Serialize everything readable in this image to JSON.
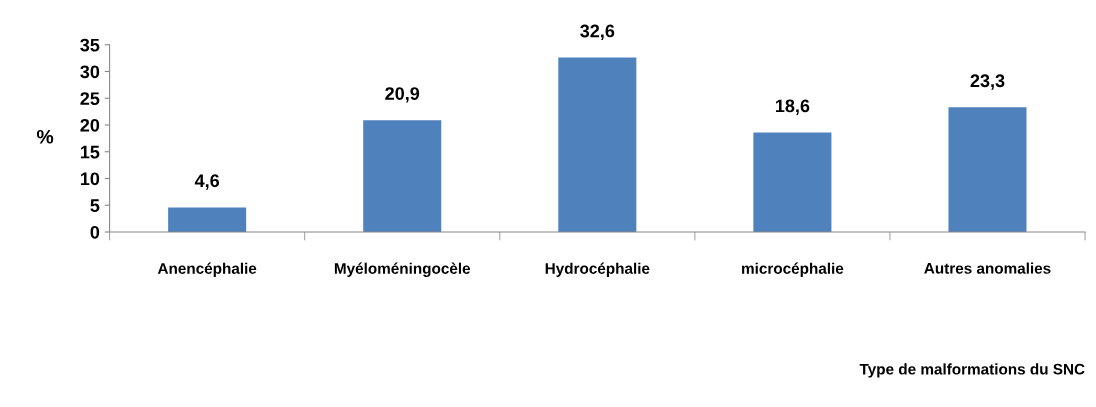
{
  "chart_data": {
    "type": "bar",
    "categories": [
      "Anencéphalie",
      "Myéloméningocèle",
      "Hydrocéphalie",
      "microcéphalie",
      "Autres anomalies"
    ],
    "values": [
      4.6,
      20.9,
      32.6,
      18.6,
      23.3
    ],
    "value_labels": [
      "4,6",
      "20,9",
      "32,6",
      "18,6",
      "23,3"
    ],
    "color": "#4f81bd",
    "ylabel": "%",
    "annotations": [
      "Type de malformations du SNC"
    ],
    "ylim": [
      0,
      35
    ],
    "yticks": [
      0,
      5,
      10,
      15,
      20,
      25,
      30,
      35
    ],
    "grid": false,
    "legend": false
  }
}
